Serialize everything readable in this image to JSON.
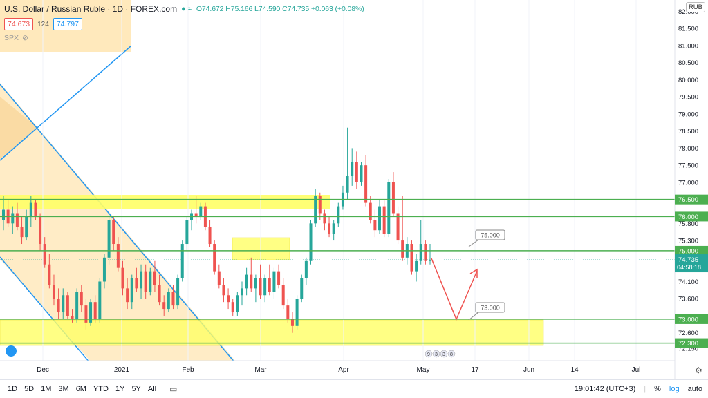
{
  "header": {
    "title": "U.S. Dollar / Russian Ruble · 1D · FOREX.com",
    "ohlc": "O74.672 H75.166 L74.590 C74.735 +0.063 (+0.08%)",
    "bid": "74.673",
    "spread": "124",
    "ask": "74.797",
    "compare_symbol": "SPX",
    "currency": "RUB"
  },
  "timeframes": [
    "1D",
    "5D",
    "1M",
    "3M",
    "6M",
    "YTD",
    "1Y",
    "5Y",
    "All"
  ],
  "footer": {
    "clock": "19:01:42 (UTC+3)",
    "percent_label": "%",
    "log_label": "log",
    "auto_label": "auto"
  },
  "colors": {
    "up": "#26a69a",
    "down": "#ef5350",
    "level_line": "#4caf50",
    "zone_yellow": "#ffff66",
    "channel_fill": "#ffe0a0",
    "channel_line": "#2196f3",
    "forecast": "#ef5350",
    "last_price": "#26a69a"
  },
  "chart_data": {
    "type": "candlestick",
    "symbol": "USDRUB",
    "ylim": [
      72.1,
      82.0
    ],
    "y_ticks": [
      72.15,
      72.6,
      73.1,
      73.6,
      74.1,
      74.6,
      75.3,
      75.8,
      76.0,
      76.5,
      77.0,
      77.5,
      78.0,
      78.5,
      79.0,
      79.5,
      80.0,
      80.5,
      81.0,
      81.5,
      82.0
    ],
    "y_tick_labels": [
      "72.150",
      "72.600",
      "73.100",
      "73.600",
      "74.100",
      "74.600",
      "75.300",
      "75.800",
      "76.000",
      "76.500",
      "77.000",
      "77.500",
      "78.000",
      "78.500",
      "79.000",
      "79.500",
      "80.000",
      "80.500",
      "81.000",
      "81.500",
      "82.000"
    ],
    "x_ticks": [
      "Dec",
      "2021",
      "Feb",
      "Mar",
      "Apr",
      "May",
      "17",
      "Jun",
      "14",
      "Jul"
    ],
    "horizontal_levels": [
      {
        "label": "76.500",
        "value": 76.5
      },
      {
        "label": "76.000",
        "value": 76.0
      },
      {
        "label": "75.000",
        "value": 75.0
      },
      {
        "label": "73.000",
        "value": 73.0
      },
      {
        "label": "72.300",
        "value": 72.3
      }
    ],
    "last_price": {
      "value": "74.735",
      "countdown": "04:58:18"
    },
    "callouts": [
      "75.000",
      "73.000"
    ],
    "event_markers": [
      "9",
      "3",
      "3",
      "8"
    ],
    "candles": [
      {
        "o": 75.9,
        "h": 76.6,
        "l": 75.6,
        "c": 76.2
      },
      {
        "o": 76.2,
        "h": 76.5,
        "l": 75.7,
        "c": 75.8
      },
      {
        "o": 75.8,
        "h": 76.3,
        "l": 75.5,
        "c": 76.1
      },
      {
        "o": 76.1,
        "h": 76.4,
        "l": 75.6,
        "c": 75.7
      },
      {
        "o": 75.7,
        "h": 76.0,
        "l": 75.2,
        "c": 75.4
      },
      {
        "o": 75.4,
        "h": 76.2,
        "l": 75.3,
        "c": 76.0
      },
      {
        "o": 76.0,
        "h": 76.6,
        "l": 75.7,
        "c": 76.4
      },
      {
        "o": 76.4,
        "h": 76.5,
        "l": 75.9,
        "c": 76.0
      },
      {
        "o": 76.0,
        "h": 76.1,
        "l": 75.0,
        "c": 75.2
      },
      {
        "o": 75.2,
        "h": 75.4,
        "l": 74.5,
        "c": 74.6
      },
      {
        "o": 74.6,
        "h": 74.9,
        "l": 73.9,
        "c": 74.0
      },
      {
        "o": 74.0,
        "h": 74.3,
        "l": 73.4,
        "c": 73.6
      },
      {
        "o": 73.6,
        "h": 73.9,
        "l": 73.0,
        "c": 73.2
      },
      {
        "o": 73.2,
        "h": 73.9,
        "l": 73.0,
        "c": 73.7
      },
      {
        "o": 73.7,
        "h": 73.8,
        "l": 73.0,
        "c": 73.1
      },
      {
        "o": 73.1,
        "h": 73.3,
        "l": 72.9,
        "c": 73.0
      },
      {
        "o": 73.0,
        "h": 73.9,
        "l": 72.9,
        "c": 73.8
      },
      {
        "o": 73.8,
        "h": 74.0,
        "l": 73.2,
        "c": 73.4
      },
      {
        "o": 73.4,
        "h": 73.6,
        "l": 72.7,
        "c": 72.9
      },
      {
        "o": 72.9,
        "h": 73.6,
        "l": 72.8,
        "c": 73.5
      },
      {
        "o": 73.5,
        "h": 73.7,
        "l": 72.9,
        "c": 73.0
      },
      {
        "o": 73.0,
        "h": 74.2,
        "l": 72.9,
        "c": 74.1
      },
      {
        "o": 74.1,
        "h": 74.9,
        "l": 73.9,
        "c": 74.8
      },
      {
        "o": 74.8,
        "h": 76.0,
        "l": 74.6,
        "c": 75.9
      },
      {
        "o": 75.9,
        "h": 76.0,
        "l": 75.0,
        "c": 75.2
      },
      {
        "o": 75.2,
        "h": 75.4,
        "l": 74.4,
        "c": 74.5
      },
      {
        "o": 74.5,
        "h": 74.7,
        "l": 73.7,
        "c": 73.9
      },
      {
        "o": 73.9,
        "h": 74.2,
        "l": 73.3,
        "c": 73.5
      },
      {
        "o": 73.5,
        "h": 74.3,
        "l": 73.3,
        "c": 74.2
      },
      {
        "o": 74.2,
        "h": 74.5,
        "l": 73.8,
        "c": 73.9
      },
      {
        "o": 73.9,
        "h": 74.6,
        "l": 73.6,
        "c": 74.4
      },
      {
        "o": 74.4,
        "h": 74.6,
        "l": 73.6,
        "c": 73.8
      },
      {
        "o": 73.8,
        "h": 74.5,
        "l": 73.7,
        "c": 74.4
      },
      {
        "o": 74.4,
        "h": 74.7,
        "l": 73.8,
        "c": 74.0
      },
      {
        "o": 74.0,
        "h": 74.3,
        "l": 73.4,
        "c": 73.5
      },
      {
        "o": 73.5,
        "h": 73.7,
        "l": 73.1,
        "c": 73.3
      },
      {
        "o": 73.3,
        "h": 73.9,
        "l": 73.2,
        "c": 73.8
      },
      {
        "o": 73.8,
        "h": 74.0,
        "l": 73.3,
        "c": 73.4
      },
      {
        "o": 73.4,
        "h": 74.3,
        "l": 73.3,
        "c": 74.2
      },
      {
        "o": 74.2,
        "h": 75.3,
        "l": 74.1,
        "c": 75.2
      },
      {
        "o": 75.2,
        "h": 76.0,
        "l": 75.0,
        "c": 75.9
      },
      {
        "o": 75.9,
        "h": 76.2,
        "l": 75.6,
        "c": 76.1
      },
      {
        "o": 76.1,
        "h": 76.6,
        "l": 75.8,
        "c": 76.0
      },
      {
        "o": 76.0,
        "h": 76.4,
        "l": 75.9,
        "c": 76.3
      },
      {
        "o": 76.3,
        "h": 76.4,
        "l": 75.6,
        "c": 75.7
      },
      {
        "o": 75.7,
        "h": 75.9,
        "l": 75.1,
        "c": 75.2
      },
      {
        "o": 75.2,
        "h": 75.3,
        "l": 74.3,
        "c": 74.4
      },
      {
        "o": 74.4,
        "h": 74.6,
        "l": 73.9,
        "c": 74.0
      },
      {
        "o": 74.0,
        "h": 74.2,
        "l": 73.5,
        "c": 73.7
      },
      {
        "o": 73.7,
        "h": 73.9,
        "l": 73.3,
        "c": 73.5
      },
      {
        "o": 73.5,
        "h": 73.6,
        "l": 73.1,
        "c": 73.2
      },
      {
        "o": 73.2,
        "h": 73.8,
        "l": 73.1,
        "c": 73.7
      },
      {
        "o": 73.7,
        "h": 74.1,
        "l": 73.4,
        "c": 73.9
      },
      {
        "o": 73.9,
        "h": 74.5,
        "l": 73.7,
        "c": 74.3
      },
      {
        "o": 74.3,
        "h": 74.8,
        "l": 73.8,
        "c": 73.9
      },
      {
        "o": 73.9,
        "h": 74.3,
        "l": 73.5,
        "c": 74.2
      },
      {
        "o": 74.2,
        "h": 74.6,
        "l": 73.6,
        "c": 73.7
      },
      {
        "o": 73.7,
        "h": 74.3,
        "l": 73.5,
        "c": 74.2
      },
      {
        "o": 74.2,
        "h": 74.6,
        "l": 73.7,
        "c": 73.8
      },
      {
        "o": 73.8,
        "h": 74.5,
        "l": 73.6,
        "c": 74.4
      },
      {
        "o": 74.4,
        "h": 74.6,
        "l": 73.9,
        "c": 74.0
      },
      {
        "o": 74.0,
        "h": 74.2,
        "l": 73.3,
        "c": 73.4
      },
      {
        "o": 73.4,
        "h": 73.6,
        "l": 72.9,
        "c": 73.0
      },
      {
        "o": 73.0,
        "h": 73.2,
        "l": 72.6,
        "c": 72.8
      },
      {
        "o": 72.8,
        "h": 73.7,
        "l": 72.7,
        "c": 73.6
      },
      {
        "o": 73.6,
        "h": 74.3,
        "l": 73.5,
        "c": 74.2
      },
      {
        "o": 74.2,
        "h": 74.8,
        "l": 74.0,
        "c": 74.7
      },
      {
        "o": 74.7,
        "h": 75.9,
        "l": 74.6,
        "c": 75.8
      },
      {
        "o": 75.8,
        "h": 76.8,
        "l": 75.7,
        "c": 76.6
      },
      {
        "o": 76.6,
        "h": 76.7,
        "l": 75.9,
        "c": 76.1
      },
      {
        "o": 76.1,
        "h": 76.2,
        "l": 75.6,
        "c": 75.8
      },
      {
        "o": 75.8,
        "h": 76.0,
        "l": 75.4,
        "c": 75.5
      },
      {
        "o": 75.5,
        "h": 75.9,
        "l": 75.3,
        "c": 75.8
      },
      {
        "o": 75.8,
        "h": 76.4,
        "l": 75.7,
        "c": 76.3
      },
      {
        "o": 76.3,
        "h": 76.9,
        "l": 76.2,
        "c": 76.7
      },
      {
        "o": 76.7,
        "h": 78.6,
        "l": 76.5,
        "c": 77.2
      },
      {
        "o": 77.2,
        "h": 78.0,
        "l": 76.9,
        "c": 77.6
      },
      {
        "o": 77.6,
        "h": 77.9,
        "l": 76.8,
        "c": 77.0
      },
      {
        "o": 77.0,
        "h": 77.6,
        "l": 76.9,
        "c": 77.5
      },
      {
        "o": 77.5,
        "h": 77.8,
        "l": 76.3,
        "c": 76.4
      },
      {
        "o": 76.4,
        "h": 76.6,
        "l": 75.8,
        "c": 75.9
      },
      {
        "o": 75.9,
        "h": 76.2,
        "l": 75.4,
        "c": 75.6
      },
      {
        "o": 75.6,
        "h": 76.5,
        "l": 75.5,
        "c": 76.3
      },
      {
        "o": 76.3,
        "h": 76.5,
        "l": 75.4,
        "c": 75.5
      },
      {
        "o": 75.5,
        "h": 77.1,
        "l": 75.4,
        "c": 77.0
      },
      {
        "o": 77.0,
        "h": 77.3,
        "l": 76.0,
        "c": 76.1
      },
      {
        "o": 76.1,
        "h": 76.3,
        "l": 75.2,
        "c": 75.3
      },
      {
        "o": 75.3,
        "h": 76.6,
        "l": 74.7,
        "c": 74.8
      },
      {
        "o": 74.8,
        "h": 75.4,
        "l": 74.6,
        "c": 75.2
      },
      {
        "o": 75.2,
        "h": 75.3,
        "l": 74.3,
        "c": 74.4
      },
      {
        "o": 74.4,
        "h": 74.9,
        "l": 74.1,
        "c": 74.7
      },
      {
        "o": 74.7,
        "h": 75.9,
        "l": 74.6,
        "c": 75.2
      },
      {
        "o": 75.2,
        "h": 75.3,
        "l": 74.6,
        "c": 74.7
      },
      {
        "o": 74.7,
        "h": 75.2,
        "l": 74.6,
        "c": 74.735
      }
    ]
  }
}
